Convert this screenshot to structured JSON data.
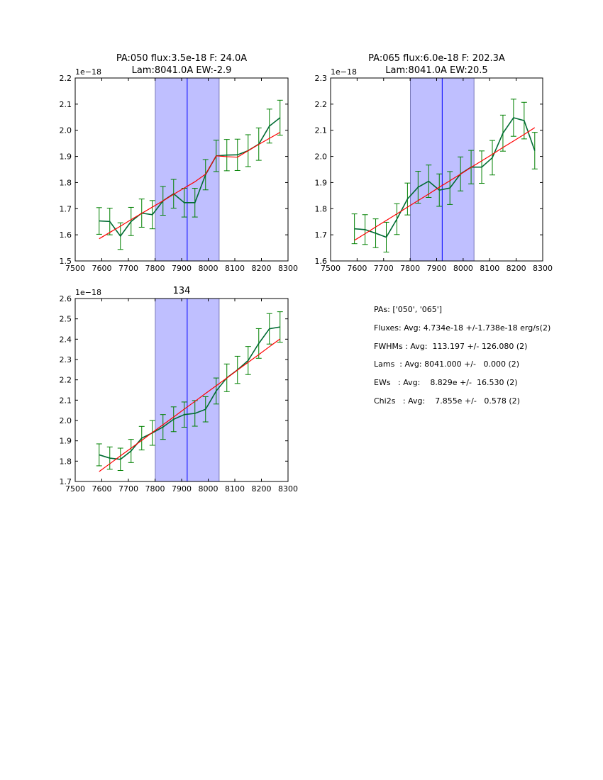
{
  "chart_data": [
    {
      "type": "line",
      "title": [
        "PA:050 flux:3.5e-18 F: 24.0A",
        "Lam:8041.0A EW:-2.9"
      ],
      "offset_label": "1e−18",
      "xlim": [
        7500,
        8300
      ],
      "ylim": [
        1.5,
        2.2
      ],
      "xticks": [
        7500,
        7600,
        7700,
        7800,
        7900,
        8000,
        8100,
        8200,
        8300
      ],
      "yticks": [
        "1.5",
        "1.6",
        "1.7",
        "1.8",
        "1.9",
        "2.0",
        "2.1",
        "2.2"
      ],
      "shaded_region": [
        7801,
        8041
      ],
      "center_line": 7921,
      "x": [
        7590,
        7630,
        7670,
        7710,
        7750,
        7790,
        7830,
        7870,
        7910,
        7950,
        7990,
        8030,
        8070,
        8110,
        8150,
        8190,
        8230,
        8270
      ],
      "series": [
        {
          "name": "data",
          "values": [
            1.653,
            1.651,
            1.595,
            1.651,
            1.683,
            1.677,
            1.73,
            1.757,
            1.723,
            1.723,
            1.83,
            1.902,
            1.905,
            1.906,
            1.922,
            1.947,
            2.016,
            2.048
          ],
          "errors": [
            0.051,
            0.051,
            0.051,
            0.054,
            0.054,
            0.054,
            0.055,
            0.055,
            0.055,
            0.055,
            0.058,
            0.06,
            0.06,
            0.06,
            0.061,
            0.062,
            0.065,
            0.067
          ]
        },
        {
          "name": "fit",
          "values": [
            1.585,
            1.609,
            1.633,
            1.658,
            1.682,
            1.706,
            1.73,
            1.755,
            1.779,
            1.803,
            1.832,
            1.902,
            1.899,
            1.897,
            1.922,
            1.946,
            1.969,
            1.992
          ]
        }
      ]
    },
    {
      "type": "line",
      "title": [
        "PA:065 flux:6.0e-18 F: 202.3A",
        "Lam:8041.0A EW:20.5"
      ],
      "offset_label": "1e−18",
      "xlim": [
        7500,
        8300
      ],
      "ylim": [
        1.6,
        2.3
      ],
      "xticks": [
        7500,
        7600,
        7700,
        7800,
        7900,
        8000,
        8100,
        8200,
        8300
      ],
      "yticks": [
        "1.6",
        "1.7",
        "1.8",
        "1.9",
        "2.0",
        "2.1",
        "2.2",
        "2.3"
      ],
      "shaded_region": [
        7801,
        8041
      ],
      "center_line": 7921,
      "x": [
        7590,
        7630,
        7670,
        7710,
        7750,
        7790,
        7830,
        7870,
        7910,
        7950,
        7990,
        8030,
        8070,
        8110,
        8150,
        8190,
        8230,
        8270
      ],
      "series": [
        {
          "name": "data",
          "values": [
            1.723,
            1.72,
            1.706,
            1.691,
            1.76,
            1.837,
            1.882,
            1.905,
            1.871,
            1.879,
            1.933,
            1.959,
            1.959,
            1.995,
            2.089,
            2.148,
            2.137,
            2.022
          ],
          "errors": [
            0.057,
            0.057,
            0.055,
            0.057,
            0.059,
            0.061,
            0.061,
            0.062,
            0.062,
            0.063,
            0.065,
            0.064,
            0.062,
            0.066,
            0.069,
            0.071,
            0.07,
            0.07
          ]
        },
        {
          "name": "fit",
          "values": [
            1.679,
            1.704,
            1.73,
            1.755,
            1.78,
            1.806,
            1.831,
            1.856,
            1.882,
            1.907,
            1.932,
            1.958,
            1.983,
            2.008,
            2.034,
            2.059,
            2.084,
            2.11
          ]
        }
      ]
    },
    {
      "type": "line",
      "title": [
        "134"
      ],
      "offset_label": "1e−18",
      "xlim": [
        7500,
        8300
      ],
      "ylim": [
        1.7,
        2.6
      ],
      "xticks": [
        7500,
        7600,
        7700,
        7800,
        7900,
        8000,
        8100,
        8200,
        8300
      ],
      "yticks": [
        "1.7",
        "1.8",
        "1.9",
        "2.0",
        "2.1",
        "2.2",
        "2.3",
        "2.4",
        "2.5",
        "2.6"
      ],
      "shaded_region": [
        7801,
        8041
      ],
      "center_line": 7921,
      "x": [
        7590,
        7630,
        7670,
        7710,
        7750,
        7790,
        7830,
        7870,
        7910,
        7950,
        7990,
        8030,
        8070,
        8110,
        8150,
        8190,
        8230,
        8270
      ],
      "series": [
        {
          "name": "data",
          "values": [
            1.831,
            1.815,
            1.809,
            1.85,
            1.913,
            1.939,
            1.968,
            2.006,
            2.029,
            2.035,
            2.055,
            2.145,
            2.21,
            2.249,
            2.295,
            2.379,
            2.451,
            2.46
          ],
          "errors": [
            0.054,
            0.055,
            0.055,
            0.057,
            0.058,
            0.061,
            0.061,
            0.061,
            0.062,
            0.063,
            0.062,
            0.064,
            0.068,
            0.067,
            0.069,
            0.073,
            0.075,
            0.075
          ]
        },
        {
          "name": "fit",
          "values": [
            1.749,
            1.787,
            1.826,
            1.864,
            1.902,
            1.941,
            1.979,
            2.017,
            2.056,
            2.094,
            2.133,
            2.171,
            2.209,
            2.248,
            2.286,
            2.324,
            2.363,
            2.401
          ]
        }
      ]
    }
  ],
  "stats": {
    "pas": "PAs: ['050', '065']",
    "fluxes": "Fluxes: Avg: 4.734e-18 +/-1.738e-18 erg/s(2)",
    "fwhms": "FWHMs : Avg:  113.197 +/- 126.080 (2)",
    "lams": "Lams  : Avg: 8041.000 +/-   0.000 (2)",
    "ews": "EWs   : Avg:    8.829e +/-  16.530 (2)",
    "chi2s": "Chi2s   : Avg:    7.855e +/-   0.578 (2)"
  },
  "colors": {
    "data": "#006b33",
    "errorbar": "#008000",
    "fit": "#ff0000",
    "shade": "#bfbfff",
    "shade_edge": "#7a7ab8",
    "center": "#0000ff"
  }
}
